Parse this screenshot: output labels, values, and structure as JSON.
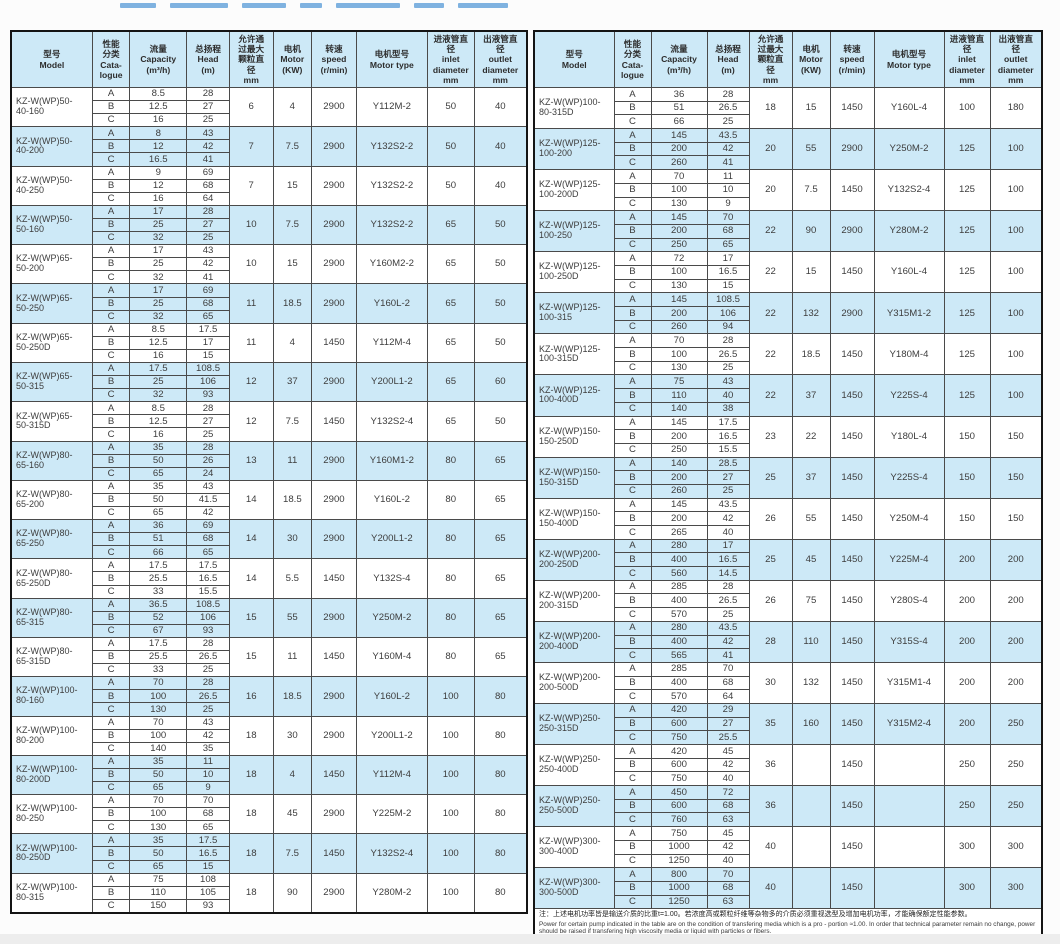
{
  "colors": {
    "header_bg": "#cde9f7",
    "row_alt_bg": "#cde9f7",
    "row_bg": "#ffffff",
    "grid_line": "#4a4a4a",
    "outer_border": "#141414",
    "text": "#3d3d3d",
    "title_fragment": "#7fb2e0"
  },
  "header": {
    "columns": [
      "型号\nModel",
      "性能\n分类\nCata-\nlogue",
      "流量\nCapacity\n(m³/h)",
      "总扬程\nHead\n(m)",
      "允许通\n过最大\n颗粒直\n径\nmm",
      "电机\nMotor\n(KW)",
      "转速\nspeed\n(r/min)",
      "电机型号\nMotor type",
      "进液管直\n径\ninlet\ndiameter\nmm",
      "出液管直\n径\noutlet\ndiameter\nmm"
    ],
    "keys": [
      "model",
      "catalogue",
      "capacity",
      "head",
      "max-particle",
      "motor-power",
      "speed",
      "motor-type",
      "inlet-diameter",
      "outlet-diameter"
    ]
  },
  "catalogue_letters": [
    "A",
    "B",
    "C"
  ],
  "left_table": {
    "rows": [
      {
        "model": "KZ-W(WP)50-\n40-160",
        "abc": [
          [
            "8.5",
            "28"
          ],
          [
            "12.5",
            "27"
          ],
          [
            "16",
            "25"
          ]
        ],
        "particle": "6",
        "motor_kw": "4",
        "speed": "2900",
        "motor_type": "Y112M-2",
        "inlet": "50",
        "outlet": "40"
      },
      {
        "model": "KZ-W(WP)50-\n40-200",
        "abc": [
          [
            "8",
            "43"
          ],
          [
            "12",
            "42"
          ],
          [
            "16.5",
            "41"
          ]
        ],
        "particle": "7",
        "motor_kw": "7.5",
        "speed": "2900",
        "motor_type": "Y132S2-2",
        "inlet": "50",
        "outlet": "40"
      },
      {
        "model": "KZ-W(WP)50-\n40-250",
        "abc": [
          [
            "9",
            "69"
          ],
          [
            "12",
            "68"
          ],
          [
            "16",
            "64"
          ]
        ],
        "particle": "7",
        "motor_kw": "15",
        "speed": "2900",
        "motor_type": "Y132S2-2",
        "inlet": "50",
        "outlet": "40"
      },
      {
        "model": "KZ-W(WP)50-\n50-160",
        "abc": [
          [
            "17",
            "28"
          ],
          [
            "25",
            "27"
          ],
          [
            "32",
            "25"
          ]
        ],
        "particle": "10",
        "motor_kw": "7.5",
        "speed": "2900",
        "motor_type": "Y132S2-2",
        "inlet": "65",
        "outlet": "50"
      },
      {
        "model": "KZ-W(WP)65-\n50-200",
        "abc": [
          [
            "17",
            "43"
          ],
          [
            "25",
            "42"
          ],
          [
            "32",
            "41"
          ]
        ],
        "particle": "10",
        "motor_kw": "15",
        "speed": "2900",
        "motor_type": "Y160M2-2",
        "inlet": "65",
        "outlet": "50"
      },
      {
        "model": "KZ-W(WP)65-\n50-250",
        "abc": [
          [
            "17",
            "69"
          ],
          [
            "25",
            "68"
          ],
          [
            "32",
            "65"
          ]
        ],
        "particle": "11",
        "motor_kw": "18.5",
        "speed": "2900",
        "motor_type": "Y160L-2",
        "inlet": "65",
        "outlet": "50"
      },
      {
        "model": "KZ-W(WP)65-\n50-250D",
        "abc": [
          [
            "8.5",
            "17.5"
          ],
          [
            "12.5",
            "17"
          ],
          [
            "16",
            "15"
          ]
        ],
        "particle": "11",
        "motor_kw": "4",
        "speed": "1450",
        "motor_type": "Y112M-4",
        "inlet": "65",
        "outlet": "50"
      },
      {
        "model": "KZ-W(WP)65-\n50-315",
        "abc": [
          [
            "17.5",
            "108.5"
          ],
          [
            "25",
            "106"
          ],
          [
            "32",
            "93"
          ]
        ],
        "particle": "12",
        "motor_kw": "37",
        "speed": "2900",
        "motor_type": "Y200L1-2",
        "inlet": "65",
        "outlet": "60"
      },
      {
        "model": "KZ-W(WP)65-\n50-315D",
        "abc": [
          [
            "8.5",
            "28"
          ],
          [
            "12.5",
            "27"
          ],
          [
            "16",
            "25"
          ]
        ],
        "particle": "12",
        "motor_kw": "7.5",
        "speed": "1450",
        "motor_type": "Y132S2-4",
        "inlet": "65",
        "outlet": "50"
      },
      {
        "model": "KZ-W(WP)80-\n65-160",
        "abc": [
          [
            "35",
            "28"
          ],
          [
            "50",
            "26"
          ],
          [
            "65",
            "24"
          ]
        ],
        "particle": "13",
        "motor_kw": "11",
        "speed": "2900",
        "motor_type": "Y160M1-2",
        "inlet": "80",
        "outlet": "65"
      },
      {
        "model": "KZ-W(WP)80-\n65-200",
        "abc": [
          [
            "35",
            "43"
          ],
          [
            "50",
            "41.5"
          ],
          [
            "65",
            "42"
          ]
        ],
        "particle": "14",
        "motor_kw": "18.5",
        "speed": "2900",
        "motor_type": "Y160L-2",
        "inlet": "80",
        "outlet": "65"
      },
      {
        "model": "KZ-W(WP)80-\n65-250",
        "abc": [
          [
            "36",
            "69"
          ],
          [
            "51",
            "68"
          ],
          [
            "66",
            "65"
          ]
        ],
        "particle": "14",
        "motor_kw": "30",
        "speed": "2900",
        "motor_type": "Y200L1-2",
        "inlet": "80",
        "outlet": "65"
      },
      {
        "model": "KZ-W(WP)80-\n65-250D",
        "abc": [
          [
            "17.5",
            "17.5"
          ],
          [
            "25.5",
            "16.5"
          ],
          [
            "33",
            "15.5"
          ]
        ],
        "particle": "14",
        "motor_kw": "5.5",
        "speed": "1450",
        "motor_type": "Y132S-4",
        "inlet": "80",
        "outlet": "65"
      },
      {
        "model": "KZ-W(WP)80-\n65-315",
        "abc": [
          [
            "36.5",
            "108.5"
          ],
          [
            "52",
            "106"
          ],
          [
            "67",
            "93"
          ]
        ],
        "particle": "15",
        "motor_kw": "55",
        "speed": "2900",
        "motor_type": "Y250M-2",
        "inlet": "80",
        "outlet": "65"
      },
      {
        "model": "KZ-W(WP)80-\n65-315D",
        "abc": [
          [
            "17.5",
            "28"
          ],
          [
            "25.5",
            "26.5"
          ],
          [
            "33",
            "25"
          ]
        ],
        "particle": "15",
        "motor_kw": "11",
        "speed": "1450",
        "motor_type": "Y160M-4",
        "inlet": "80",
        "outlet": "65"
      },
      {
        "model": "KZ-W(WP)100-\n80-160",
        "abc": [
          [
            "70",
            "28"
          ],
          [
            "100",
            "26.5"
          ],
          [
            "130",
            "25"
          ]
        ],
        "particle": "16",
        "motor_kw": "18.5",
        "speed": "2900",
        "motor_type": "Y160L-2",
        "inlet": "100",
        "outlet": "80"
      },
      {
        "model": "KZ-W(WP)100-\n80-200",
        "abc": [
          [
            "70",
            "43"
          ],
          [
            "100",
            "42"
          ],
          [
            "140",
            "35"
          ]
        ],
        "particle": "18",
        "motor_kw": "30",
        "speed": "2900",
        "motor_type": "Y200L1-2",
        "inlet": "100",
        "outlet": "80"
      },
      {
        "model": "KZ-W(WP)100-\n80-200D",
        "abc": [
          [
            "35",
            "11"
          ],
          [
            "50",
            "10"
          ],
          [
            "65",
            "9"
          ]
        ],
        "particle": "18",
        "motor_kw": "4",
        "speed": "1450",
        "motor_type": "Y112M-4",
        "inlet": "100",
        "outlet": "80"
      },
      {
        "model": "KZ-W(WP)100-\n80-250",
        "abc": [
          [
            "70",
            "70"
          ],
          [
            "100",
            "68"
          ],
          [
            "130",
            "65"
          ]
        ],
        "particle": "18",
        "motor_kw": "45",
        "speed": "2900",
        "motor_type": "Y225M-2",
        "inlet": "100",
        "outlet": "80"
      },
      {
        "model": "KZ-W(WP)100-\n80-250D",
        "abc": [
          [
            "35",
            "17.5"
          ],
          [
            "50",
            "16.5"
          ],
          [
            "65",
            "15"
          ]
        ],
        "particle": "18",
        "motor_kw": "7.5",
        "speed": "1450",
        "motor_type": "Y132S2-4",
        "inlet": "100",
        "outlet": "80"
      },
      {
        "model": "KZ-W(WP)100-\n80-315",
        "abc": [
          [
            "75",
            "108"
          ],
          [
            "110",
            "105"
          ],
          [
            "150",
            "93"
          ]
        ],
        "particle": "18",
        "motor_kw": "90",
        "speed": "2900",
        "motor_type": "Y280M-2",
        "inlet": "100",
        "outlet": "80"
      }
    ]
  },
  "right_table": {
    "rows": [
      {
        "model": "KZ-W(WP)100-\n80-315D",
        "abc": [
          [
            "36",
            "28"
          ],
          [
            "51",
            "26.5"
          ],
          [
            "66",
            "25"
          ]
        ],
        "particle": "18",
        "motor_kw": "15",
        "speed": "1450",
        "motor_type": "Y160L-4",
        "inlet": "100",
        "outlet": "180"
      },
      {
        "model": "KZ-W(WP)125-\n100-200",
        "abc": [
          [
            "145",
            "43.5"
          ],
          [
            "200",
            "42"
          ],
          [
            "260",
            "41"
          ]
        ],
        "particle": "20",
        "motor_kw": "55",
        "speed": "2900",
        "motor_type": "Y250M-2",
        "inlet": "125",
        "outlet": "100"
      },
      {
        "model": "KZ-W(WP)125-\n100-200D",
        "abc": [
          [
            "70",
            "11"
          ],
          [
            "100",
            "10"
          ],
          [
            "130",
            "9"
          ]
        ],
        "particle": "20",
        "motor_kw": "7.5",
        "speed": "1450",
        "motor_type": "Y132S2-4",
        "inlet": "125",
        "outlet": "100"
      },
      {
        "model": "KZ-W(WP)125-\n100-250",
        "abc": [
          [
            "145",
            "70"
          ],
          [
            "200",
            "68"
          ],
          [
            "250",
            "65"
          ]
        ],
        "particle": "22",
        "motor_kw": "90",
        "speed": "2900",
        "motor_type": "Y280M-2",
        "inlet": "125",
        "outlet": "100"
      },
      {
        "model": "KZ-W(WP)125-\n100-250D",
        "abc": [
          [
            "72",
            "17"
          ],
          [
            "100",
            "16.5"
          ],
          [
            "130",
            "15"
          ]
        ],
        "particle": "22",
        "motor_kw": "15",
        "speed": "1450",
        "motor_type": "Y160L-4",
        "inlet": "125",
        "outlet": "100"
      },
      {
        "model": "KZ-W(WP)125-\n100-315",
        "abc": [
          [
            "145",
            "108.5"
          ],
          [
            "200",
            "106"
          ],
          [
            "260",
            "94"
          ]
        ],
        "particle": "22",
        "motor_kw": "132",
        "speed": "2900",
        "motor_type": "Y315M1-2",
        "inlet": "125",
        "outlet": "100"
      },
      {
        "model": "KZ-W(WP)125-\n100-315D",
        "abc": [
          [
            "70",
            "28"
          ],
          [
            "100",
            "26.5"
          ],
          [
            "130",
            "25"
          ]
        ],
        "particle": "22",
        "motor_kw": "18.5",
        "speed": "1450",
        "motor_type": "Y180M-4",
        "inlet": "125",
        "outlet": "100"
      },
      {
        "model": "KZ-W(WP)125-\n100-400D",
        "abc": [
          [
            "75",
            "43"
          ],
          [
            "110",
            "40"
          ],
          [
            "140",
            "38"
          ]
        ],
        "particle": "22",
        "motor_kw": "37",
        "speed": "1450",
        "motor_type": "Y225S-4",
        "inlet": "125",
        "outlet": "100"
      },
      {
        "model": "KZ-W(WP)150-\n150-250D",
        "abc": [
          [
            "145",
            "17.5"
          ],
          [
            "200",
            "16.5"
          ],
          [
            "250",
            "15.5"
          ]
        ],
        "particle": "23",
        "motor_kw": "22",
        "speed": "1450",
        "motor_type": "Y180L-4",
        "inlet": "150",
        "outlet": "150"
      },
      {
        "model": "KZ-W(WP)150-\n150-315D",
        "abc": [
          [
            "140",
            "28.5"
          ],
          [
            "200",
            "27"
          ],
          [
            "260",
            "25"
          ]
        ],
        "particle": "25",
        "motor_kw": "37",
        "speed": "1450",
        "motor_type": "Y225S-4",
        "inlet": "150",
        "outlet": "150"
      },
      {
        "model": "KZ-W(WP)150-\n150-400D",
        "abc": [
          [
            "145",
            "43.5"
          ],
          [
            "200",
            "42"
          ],
          [
            "265",
            "40"
          ]
        ],
        "particle": "26",
        "motor_kw": "55",
        "speed": "1450",
        "motor_type": "Y250M-4",
        "inlet": "150",
        "outlet": "150"
      },
      {
        "model": "KZ-W(WP)200-\n200-250D",
        "abc": [
          [
            "280",
            "17"
          ],
          [
            "400",
            "16.5"
          ],
          [
            "560",
            "14.5"
          ]
        ],
        "particle": "25",
        "motor_kw": "45",
        "speed": "1450",
        "motor_type": "Y225M-4",
        "inlet": "200",
        "outlet": "200"
      },
      {
        "model": "KZ-W(WP)200-\n200-315D",
        "abc": [
          [
            "285",
            "28"
          ],
          [
            "400",
            "26.5"
          ],
          [
            "570",
            "25"
          ]
        ],
        "particle": "26",
        "motor_kw": "75",
        "speed": "1450",
        "motor_type": "Y280S-4",
        "inlet": "200",
        "outlet": "200"
      },
      {
        "model": "KZ-W(WP)200-\n200-400D",
        "abc": [
          [
            "280",
            "43.5"
          ],
          [
            "400",
            "42"
          ],
          [
            "565",
            "41"
          ]
        ],
        "particle": "28",
        "motor_kw": "110",
        "speed": "1450",
        "motor_type": "Y315S-4",
        "inlet": "200",
        "outlet": "200"
      },
      {
        "model": "KZ-W(WP)200-\n200-500D",
        "abc": [
          [
            "285",
            "70"
          ],
          [
            "400",
            "68"
          ],
          [
            "570",
            "64"
          ]
        ],
        "particle": "30",
        "motor_kw": "132",
        "speed": "1450",
        "motor_type": "Y315M1-4",
        "inlet": "200",
        "outlet": "200"
      },
      {
        "model": "KZ-W(WP)250-\n250-315D",
        "abc": [
          [
            "420",
            "29"
          ],
          [
            "600",
            "27"
          ],
          [
            "750",
            "25.5"
          ]
        ],
        "particle": "35",
        "motor_kw": "160",
        "speed": "1450",
        "motor_type": "Y315M2-4",
        "inlet": "200",
        "outlet": "250"
      },
      {
        "model": "KZ-W(WP)250-\n250-400D",
        "abc": [
          [
            "420",
            "45"
          ],
          [
            "600",
            "42"
          ],
          [
            "750",
            "40"
          ]
        ],
        "particle": "36",
        "motor_kw": "",
        "speed": "1450",
        "motor_type": "",
        "inlet": "250",
        "outlet": "250"
      },
      {
        "model": "KZ-W(WP)250-\n250-500D",
        "abc": [
          [
            "450",
            "72"
          ],
          [
            "600",
            "68"
          ],
          [
            "760",
            "63"
          ]
        ],
        "particle": "36",
        "motor_kw": "",
        "speed": "1450",
        "motor_type": "",
        "inlet": "250",
        "outlet": "250"
      },
      {
        "model": "KZ-W(WP)300-\n300-400D",
        "abc": [
          [
            "750",
            "45"
          ],
          [
            "1000",
            "42"
          ],
          [
            "1250",
            "40"
          ]
        ],
        "particle": "40",
        "motor_kw": "",
        "speed": "1450",
        "motor_type": "",
        "inlet": "300",
        "outlet": "300"
      },
      {
        "model": "KZ-W(WP)300-\n300-500D",
        "abc": [
          [
            "800",
            "70"
          ],
          [
            "1000",
            "68"
          ],
          [
            "1250",
            "63"
          ]
        ],
        "particle": "40",
        "motor_kw": "",
        "speed": "1450",
        "motor_type": "",
        "inlet": "300",
        "outlet": "300"
      }
    ]
  },
  "note": {
    "cn": "注：上述电机功率皆是输送介质的比重t=1.00。若浓度高或颗粒纤维等杂物多的介质必须重视选型及增加电机功率，才能确保额定性能参数。",
    "en": "Power for certain pump indicated in the table are on the condition of transfering media which is a pro - portion ≈1.00. In order that technical parameter remain no change, power should be raised if transfering high viscosity media or liquid with particles or fibers."
  }
}
